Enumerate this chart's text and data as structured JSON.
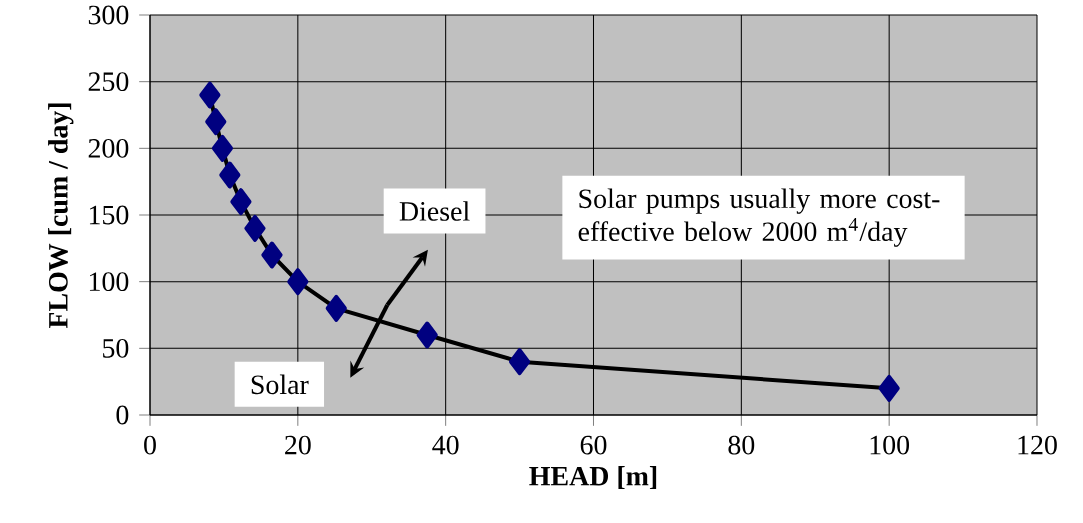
{
  "chart_data": {
    "type": "line",
    "xlabel": "HEAD [m]",
    "ylabel": "FLOW [cum / day]",
    "x": [
      8.1,
      8.9,
      9.8,
      10.8,
      12.3,
      14.2,
      16.5,
      20,
      25.2,
      37.5,
      50,
      100
    ],
    "series": [
      {
        "color": "#000080",
        "values": [
          240,
          220,
          200,
          180,
          160,
          140,
          120,
          100,
          80,
          60,
          40,
          20
        ]
      }
    ],
    "xlim": [
      0,
      120
    ],
    "xticks": [
      0,
      20,
      40,
      60,
      80,
      100,
      120
    ],
    "ylim": [
      0,
      300
    ],
    "yticks": [
      0,
      50,
      100,
      150,
      200,
      250,
      300
    ],
    "grid": true,
    "marker": "diamond",
    "line_style": "solid",
    "annotations": [
      "Diesel",
      "Solar",
      "Solar pumps usually more cost-effective below 2000 m$^{4}$/day"
    ]
  }
}
